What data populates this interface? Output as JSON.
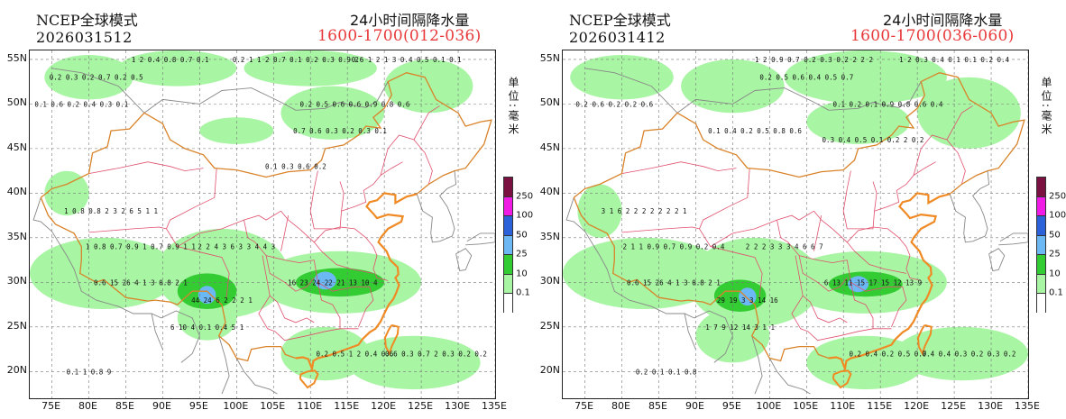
{
  "panels": [
    {
      "id": "left",
      "model": "NCEP全球模式",
      "init_time": "2026031512",
      "product_title": "24小时间隔降水量",
      "valid_range": "1600-1700(012-036)",
      "unit": "单位:毫米",
      "precip_areas": [
        {
          "lon": 80,
          "lat": 53,
          "rx": 6,
          "ry": 2.5,
          "level": "green"
        },
        {
          "lon": 92,
          "lat": 54,
          "rx": 8,
          "ry": 2,
          "level": "green"
        },
        {
          "lon": 110,
          "lat": 54,
          "rx": 9,
          "ry": 2,
          "level": "green"
        },
        {
          "lon": 126,
          "lat": 52,
          "rx": 6,
          "ry": 3,
          "level": "green"
        },
        {
          "lon": 113,
          "lat": 49,
          "rx": 7,
          "ry": 3,
          "level": "green"
        },
        {
          "lon": 100,
          "lat": 47,
          "rx": 5,
          "ry": 1.5,
          "level": "green"
        },
        {
          "lon": 77,
          "lat": 40,
          "rx": 3,
          "ry": 2.5,
          "level": "green"
        },
        {
          "lon": 82,
          "lat": 31,
          "rx": 10,
          "ry": 4,
          "level": "green"
        },
        {
          "lon": 98,
          "lat": 31,
          "rx": 9,
          "ry": 5,
          "level": "green"
        },
        {
          "lon": 114,
          "lat": 30,
          "rx": 11,
          "ry": 3.5,
          "level": "green"
        },
        {
          "lon": 96,
          "lat": 26,
          "rx": 4,
          "ry": 2.5,
          "level": "green"
        },
        {
          "lon": 112,
          "lat": 22,
          "rx": 6,
          "ry": 3,
          "level": "green"
        },
        {
          "lon": 124,
          "lat": 21,
          "rx": 9,
          "ry": 3,
          "level": "green"
        },
        {
          "lon": 96,
          "lat": 29,
          "rx": 4,
          "ry": 2,
          "level": "lightgreen"
        },
        {
          "lon": 114,
          "lat": 30,
          "rx": 6,
          "ry": 1.6,
          "level": "lightgreen"
        },
        {
          "lon": 96,
          "lat": 28.6,
          "rx": 1.2,
          "ry": 1,
          "level": "lightblue"
        },
        {
          "lon": 112,
          "lat": 30.2,
          "rx": 1.5,
          "ry": 1,
          "level": "lightblue"
        }
      ],
      "station_values": [
        {
          "lon": 91,
          "lat": 55,
          "t": "1 2 0.4 0.8 0.7 0.1"
        },
        {
          "lon": 108,
          "lat": 55,
          "t": "0.2 1 1 2 0.7 0.1 0.2 0.3 0.9 2"
        },
        {
          "lon": 123,
          "lat": 55,
          "t": "0.6 1 2 1 3 0.4 0.5 0.1 0.1"
        },
        {
          "lon": 81,
          "lat": 53,
          "t": "0.2 0.3 0.2 0.7 0.2 0.5"
        },
        {
          "lon": 79,
          "lat": 50,
          "t": "0.1 0.6 0.2 0.4 0.3 0.1"
        },
        {
          "lon": 116,
          "lat": 50,
          "t": "0.2 0.5 0.6 0.6 0.9 0.8 0.6"
        },
        {
          "lon": 114,
          "lat": 47,
          "t": "0.7 0.6 0.3 0.2 0.3 0.1"
        },
        {
          "lon": 108,
          "lat": 43,
          "t": "0.1 0.3 0.6 0.2"
        },
        {
          "lon": 83,
          "lat": 38,
          "t": "1 0.8 0.8 2 3 2 6 5 1 1"
        },
        {
          "lon": 87,
          "lat": 34,
          "t": "1 0.8 0.7 0.9 1 0.7 0.9 1 1"
        },
        {
          "lon": 100,
          "lat": 34,
          "t": "2 2 4 3 6 3 3 4 4 3"
        },
        {
          "lon": 87,
          "lat": 30,
          "t": "0.6 15 26 4 1 3 0.8 2 1"
        },
        {
          "lon": 113,
          "lat": 30,
          "t": "16 23 24 22 21 13 10 4"
        },
        {
          "lon": 98,
          "lat": 28,
          "t": "44 24 6 2 2 2 1"
        },
        {
          "lon": 96,
          "lat": 25,
          "t": "6 10 4 0.1 0.4 5 1"
        },
        {
          "lon": 116,
          "lat": 22,
          "t": "0.2 0.5 1 2 0.4 0.6"
        },
        {
          "lon": 127,
          "lat": 22,
          "t": "0.6 0.3 0.7 2 0.3 0.2 0.2"
        },
        {
          "lon": 80,
          "lat": 20,
          "t": "0.1 1 0.8 9"
        }
      ]
    },
    {
      "id": "right",
      "model": "NCEP全球模式",
      "init_time": "2026031412",
      "product_title": "24小时间隔降水量",
      "valid_range": "1600-1700(036-060)",
      "unit": "单位:毫米",
      "precip_areas": [
        {
          "lon": 80,
          "lat": 53,
          "rx": 7,
          "ry": 2.5,
          "level": "green"
        },
        {
          "lon": 95,
          "lat": 52,
          "rx": 7,
          "ry": 3,
          "level": "green"
        },
        {
          "lon": 113,
          "lat": 53,
          "rx": 11,
          "ry": 3,
          "level": "green"
        },
        {
          "lon": 127,
          "lat": 49,
          "rx": 7,
          "ry": 4,
          "level": "green"
        },
        {
          "lon": 112,
          "lat": 48,
          "rx": 7,
          "ry": 2.5,
          "level": "green"
        },
        {
          "lon": 77,
          "lat": 38,
          "rx": 3,
          "ry": 3,
          "level": "green"
        },
        {
          "lon": 83,
          "lat": 31,
          "rx": 11,
          "ry": 4,
          "level": "green"
        },
        {
          "lon": 98,
          "lat": 30,
          "rx": 9,
          "ry": 5,
          "level": "green"
        },
        {
          "lon": 113,
          "lat": 30,
          "rx": 11,
          "ry": 3.5,
          "level": "green"
        },
        {
          "lon": 95,
          "lat": 24,
          "rx": 5,
          "ry": 3,
          "level": "green"
        },
        {
          "lon": 113,
          "lat": 21,
          "rx": 8,
          "ry": 3,
          "level": "green"
        },
        {
          "lon": 126,
          "lat": 22,
          "rx": 9,
          "ry": 3,
          "level": "green"
        },
        {
          "lon": 96,
          "lat": 28.5,
          "rx": 3.5,
          "ry": 1.8,
          "level": "lightgreen"
        },
        {
          "lon": 113,
          "lat": 29.8,
          "rx": 5,
          "ry": 1.4,
          "level": "lightgreen"
        },
        {
          "lon": 97,
          "lat": 28.4,
          "rx": 1.2,
          "ry": 1,
          "level": "lightblue"
        },
        {
          "lon": 112,
          "lat": 29.8,
          "rx": 1.4,
          "ry": 0.9,
          "level": "lightblue"
        }
      ],
      "station_values": [
        {
          "lon": 106,
          "lat": 55,
          "t": "1 2 0.9 0.7 0.2 0.3 0.2 2 2 2"
        },
        {
          "lon": 125,
          "lat": 55,
          "t": "1 2 0.3 0.4 0.1 0.1 0.2 0.4"
        },
        {
          "lon": 105,
          "lat": 53,
          "t": "0.2 0.5 0.6 0.4 0.5 0.7"
        },
        {
          "lon": 79,
          "lat": 50,
          "t": "0.2 0.6 0.2 0.2 0.6"
        },
        {
          "lon": 116,
          "lat": 50,
          "t": "0.1 0.2 0.1 0.9 0.8 0.6 0.4"
        },
        {
          "lon": 114,
          "lat": 46,
          "t": "0.3 0.4 0.5 0.1 0.2 2 0.2"
        },
        {
          "lon": 98,
          "lat": 47,
          "t": "0.1 0.4 0.2 0.5 0.8 0.6"
        },
        {
          "lon": 83,
          "lat": 38,
          "t": "3 1 6 2 2 2 2 2 2 2 1"
        },
        {
          "lon": 87,
          "lat": 34,
          "t": "2 1 1 0.9 0.7 0.9 0.2 0.4"
        },
        {
          "lon": 102,
          "lat": 34,
          "t": "2 2 2 3 3 3 4 6 6 7"
        },
        {
          "lon": 87,
          "lat": 30,
          "t": "0.6 15 26 4 1 3 0.8 2 1"
        },
        {
          "lon": 114,
          "lat": 30,
          "t": "6 13 11 15 17 15 12 13 9"
        },
        {
          "lon": 97,
          "lat": 28,
          "t": "29 19 3 3 14 16"
        },
        {
          "lon": 96,
          "lat": 25,
          "t": "1 7 9 12 14 3 1 1"
        },
        {
          "lon": 116,
          "lat": 22,
          "t": "0.2 0.4 0.2 0.5 0.7"
        },
        {
          "lon": 127,
          "lat": 22,
          "t": "0.4 0.4 0.3 0.2 0.3 0.2"
        },
        {
          "lon": 86,
          "lat": 20,
          "t": "0.2 0.1 0.1 0.8"
        }
      ]
    }
  ],
  "axes": {
    "lat_labels": [
      "55N",
      "50N",
      "45N",
      "40N",
      "35N",
      "30N",
      "25N",
      "20N"
    ],
    "lat_values": [
      55,
      50,
      45,
      40,
      35,
      30,
      25,
      20
    ],
    "lon_labels": [
      "75E",
      "80E",
      "85E",
      "90E",
      "95E",
      "100E",
      "105E",
      "110E",
      "115E",
      "120E",
      "125E",
      "130E",
      "135E"
    ],
    "lon_values": [
      75,
      80,
      85,
      90,
      95,
      100,
      105,
      110,
      115,
      120,
      125,
      130,
      135
    ],
    "lon_range": [
      72,
      135
    ],
    "lat_range": [
      17,
      56
    ]
  },
  "legend": {
    "labels": [
      "250",
      "100",
      "50",
      "25",
      "10",
      "0.1"
    ],
    "colors": [
      "#7a1140",
      "#f01ce6",
      "#2b62d9",
      "#6cb8f4",
      "#33cc33",
      "#a8f5a3",
      "#ffffff"
    ]
  },
  "palette": {
    "green": "#a8f5a3",
    "lightgreen": "#33cc33",
    "lightblue": "#6cb8f4",
    "border_country": "#d9832a",
    "border_province": "#e0506e",
    "border_gray": "#888888",
    "coast": "#f08a24"
  }
}
